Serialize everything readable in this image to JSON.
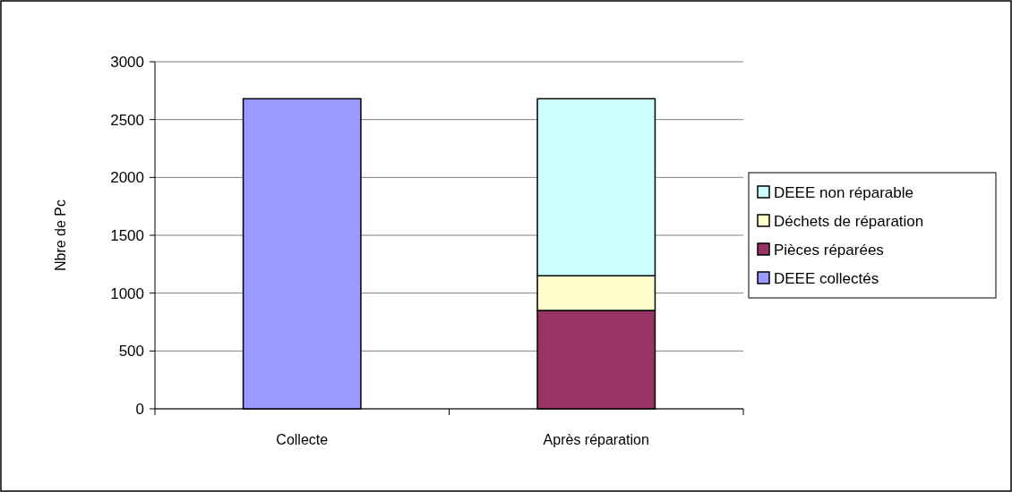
{
  "chart_data": {
    "type": "bar",
    "stacked": true,
    "ylabel": "Nbre de Pc",
    "categories": [
      "Collecte",
      "Après réparation"
    ],
    "series": [
      {
        "name": "DEEE collectés",
        "color": "#9999ff",
        "values": [
          2680,
          null
        ]
      },
      {
        "name": "Pièces réparées",
        "color": "#993366",
        "values": [
          null,
          850
        ]
      },
      {
        "name": "Déchets de réparation",
        "color": "#ffffcc",
        "values": [
          null,
          300
        ]
      },
      {
        "name": "DEEE non réparable",
        "color": "#ccffff",
        "values": [
          null,
          1530
        ]
      }
    ],
    "ylim": [
      0,
      3000
    ],
    "yticks": [
      0,
      500,
      1000,
      1500,
      2000,
      2500,
      3000
    ],
    "grid": "y",
    "legend": "right"
  }
}
